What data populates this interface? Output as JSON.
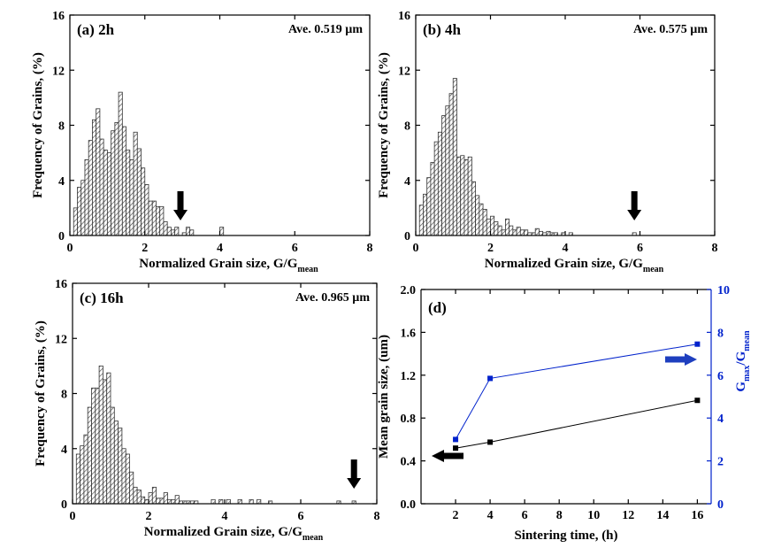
{
  "colors": {
    "axis": "#000000",
    "bar_fill": "#ffffff",
    "bar_hatch": "#444444",
    "series_mean": "#000000",
    "series_ratio": "#0022cc",
    "arrow_left": "#000000",
    "arrow_right": "#1e3fbf"
  },
  "chart_data": [
    {
      "type": "bar",
      "panel": "(a) 2h",
      "annotation": "Ave. 0.519 µm",
      "xlabel_main": "Normalized Grain size, G/G",
      "xlabel_sub": "mean",
      "ylabel": "Frequency of Grains, (%)",
      "xlim": [
        0,
        8
      ],
      "ylim": [
        0,
        16
      ],
      "xticks": [
        "0",
        "2",
        "4",
        "6",
        "8"
      ],
      "yticks": [
        "0",
        "4",
        "8",
        "12",
        "16"
      ],
      "bin_width": 0.1,
      "bin_start": 0.1,
      "values": [
        2.0,
        3.5,
        4.0,
        5.5,
        6.9,
        8.4,
        9.2,
        7.0,
        6.2,
        6.0,
        7.6,
        8.2,
        10.4,
        7.9,
        6.2,
        5.5,
        7.5,
        6.3,
        4.9,
        3.7,
        2.5,
        2.5,
        2.1,
        2.1,
        1.0,
        0.6,
        0.4,
        0.6,
        0.0,
        0.2,
        0.6,
        0.4,
        0.0,
        0.0,
        0.0,
        0.0,
        0.0,
        0.0,
        0.0,
        0.6
      ],
      "arrow_marker_x": 2.95
    },
    {
      "type": "bar",
      "panel": "(b) 4h",
      "annotation": "Ave. 0.575 µm",
      "xlabel_main": "Normalized Grain size, G/G",
      "xlabel_sub": "mean",
      "ylabel": "Frequency of Grains, (%)",
      "xlim": [
        0,
        8
      ],
      "ylim": [
        0,
        16
      ],
      "xticks": [
        "0",
        "2",
        "4",
        "6",
        "8"
      ],
      "yticks": [
        "0",
        "4",
        "8",
        "12",
        "16"
      ],
      "bin_width": 0.1,
      "bin_start": 0.1,
      "values": [
        2.2,
        3.0,
        4.2,
        5.3,
        6.8,
        7.5,
        8.7,
        9.4,
        10.3,
        11.4,
        5.7,
        5.8,
        5.5,
        5.7,
        3.9,
        2.9,
        2.3,
        1.9,
        1.2,
        1.4,
        1.0,
        0.7,
        0.4,
        1.2,
        0.7,
        0.4,
        0.6,
        0.4,
        0.4,
        0.2,
        0.2,
        0.5,
        0.3,
        0.2,
        0.3,
        0.2,
        0.2,
        0.0,
        0.2,
        0.0,
        0.2
      ],
      "extra_bar": {
        "x": 5.85,
        "value": 0.2
      },
      "arrow_marker_x": 5.85
    },
    {
      "type": "bar",
      "panel": "(c) 16h",
      "annotation": "Ave. 0.965 µm",
      "xlabel_main": "Normalized Grain size, G/G",
      "xlabel_sub": "mean",
      "ylabel": "Frequency of Grains, (%)",
      "xlim": [
        0,
        8
      ],
      "ylim": [
        0,
        16
      ],
      "xticks": [
        "0",
        "2",
        "4",
        "6",
        "8"
      ],
      "yticks": [
        "0",
        "4",
        "8",
        "12",
        "16"
      ],
      "bin_width": 0.1,
      "bin_start": 0.1,
      "values": [
        3.6,
        4.2,
        5.0,
        7.0,
        8.4,
        8.4,
        10.0,
        9.0,
        9.5,
        7.0,
        6.0,
        5.5,
        4.0,
        3.6,
        2.3,
        1.2,
        1.0,
        0.5,
        0.3,
        0.8,
        1.2,
        0.4,
        0.4,
        0.8,
        0.3,
        0.3,
        0.6,
        0.2,
        0.2,
        0.2,
        0.2,
        0.2
      ],
      "sparse_bars": [
        [
          3.7,
          0.3
        ],
        [
          3.9,
          0.3
        ],
        [
          4.1,
          0.3
        ],
        [
          4.4,
          0.3
        ],
        [
          4.7,
          0.3
        ],
        [
          4.9,
          0.3
        ],
        [
          5.2,
          0.2
        ],
        [
          7.0,
          0.2
        ],
        [
          7.4,
          0.2
        ]
      ],
      "arrow_marker_x": 7.4
    },
    {
      "type": "line",
      "panel": "(d)",
      "xlabel": "Sintering time, (h)",
      "ylabel_left": "Mean grain size, (um)",
      "ylabel_right_main": "G",
      "ylabel_right_sub1": "max",
      "ylabel_right_mid": "/G",
      "ylabel_right_sub2": "mean",
      "xlim": [
        0,
        16.8
      ],
      "ylim_left": [
        0.0,
        2.0
      ],
      "ylim_right": [
        0,
        10
      ],
      "xticks": [
        "2",
        "4",
        "6",
        "8",
        "10",
        "12",
        "14",
        "16"
      ],
      "yticks_left": [
        "0.0",
        "0.4",
        "0.8",
        "1.2",
        "1.6",
        "2.0"
      ],
      "yticks_right": [
        "0",
        "2",
        "4",
        "6",
        "8",
        "10"
      ],
      "series": [
        {
          "axis": "left",
          "x": [
            2,
            4,
            16
          ],
          "y": [
            0.519,
            0.575,
            0.965
          ]
        },
        {
          "axis": "right",
          "x": [
            2,
            4,
            16
          ],
          "y": [
            3.0,
            5.85,
            7.45
          ]
        }
      ]
    }
  ]
}
